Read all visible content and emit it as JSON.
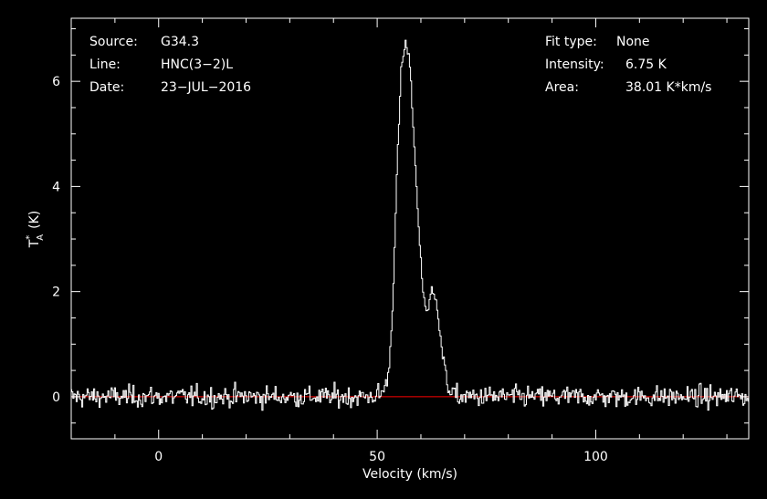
{
  "info": {
    "source_label": "Source:",
    "source_value": "G34.3",
    "line_label": "Line:",
    "line_value": "HNC(3−2)L",
    "date_label": "Date:",
    "date_value": "23−JUL−2016",
    "fit_label": "Fit type:",
    "fit_value": "None",
    "intensity_label": "Intensity:",
    "intensity_value": "6.75 K",
    "area_label": "Area:",
    "area_value": "38.01 K*km/s"
  },
  "chart_data": {
    "type": "line",
    "xlabel": "Velocity (km/s)",
    "ylabel": "T",
    "ylabel_superscript": "*",
    "ylabel_subscript": "A",
    "ylabel_unit": "(K)",
    "xlim": [
      -20,
      135
    ],
    "ylim": [
      -0.8,
      7.2
    ],
    "x_ticks": [
      0,
      50,
      100
    ],
    "y_ticks": [
      0,
      2,
      4,
      6
    ],
    "grid": false,
    "colors": {
      "spectrum": "#ffffff",
      "baseline": "#ff0000",
      "axes": "#ffffff",
      "background": "#000000"
    },
    "baseline_y": 0,
    "series": [
      {
        "values_sampling": "spectrum sampled every 0.25 km/s from -20 to 135 km/s",
        "x_start": -20,
        "x_step": 0.25,
        "key_points": {
          "x": [
            -20,
            48,
            51,
            52.5,
            53.5,
            54.5,
            55.5,
            56.5,
            57.5,
            58.5,
            59.5,
            60.5,
            61.5,
            62.5,
            63.5,
            64.5,
            65.5,
            66.5,
            68,
            135
          ],
          "y": [
            0,
            0,
            0.05,
            0.35,
            1.6,
            4.2,
            6.2,
            6.75,
            6.3,
            4.8,
            3.2,
            2.0,
            1.55,
            2.05,
            1.9,
            1.1,
            0.45,
            0.15,
            0,
            0
          ]
        },
        "noise_rms": 0.1
      }
    ]
  }
}
